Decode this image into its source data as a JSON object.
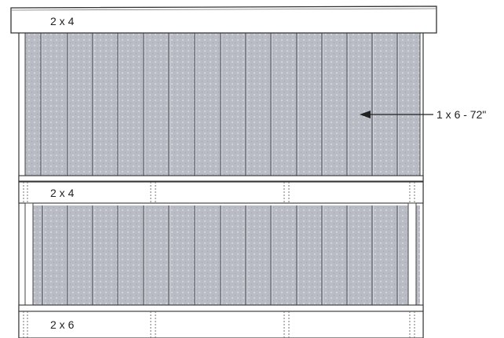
{
  "labels": {
    "top_rail": "2 x 4",
    "middle_rail": "2 x 4",
    "bottom_rail": "2 x 6",
    "board_callout": "1 x 6 - 72\""
  },
  "colors": {
    "board": "#b9bcc4",
    "board_seam": "#5a5e66",
    "rail": "#ffffff",
    "outline": "#333333"
  }
}
